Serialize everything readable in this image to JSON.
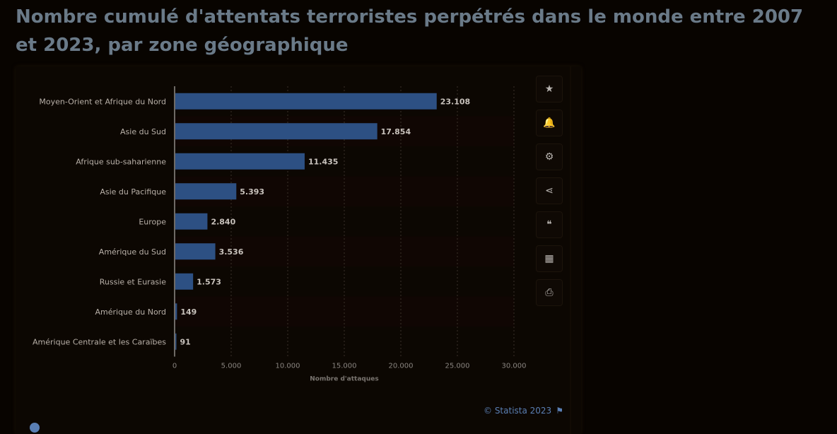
{
  "title": "Nombre cumulé d'attentats terroristes perpétrés dans le monde entre 2007 et 2023, par zone géographique",
  "credit": "© Statista 2023",
  "toolbar": [
    {
      "name": "favorite-icon",
      "glyph": "★"
    },
    {
      "name": "bell-icon",
      "glyph": "🔔"
    },
    {
      "name": "gear-icon",
      "glyph": "⚙"
    },
    {
      "name": "share-icon",
      "glyph": "⋖"
    },
    {
      "name": "quote-icon",
      "glyph": "❝"
    },
    {
      "name": "flag-icon",
      "glyph": "▦"
    },
    {
      "name": "print-icon",
      "glyph": "⎙"
    }
  ],
  "chart_data": {
    "type": "bar",
    "orientation": "horizontal",
    "categories": [
      "Moyen-Orient et Afrique du Nord",
      "Asie du Sud",
      "Afrique sub-saharienne",
      "Asie du Pacifique",
      "Europe",
      "Amérique du Sud",
      "Russie et Eurasie",
      "Amérique du Nord",
      "Amérique Centrale et les Caraïbes"
    ],
    "values": [
      23108,
      17854,
      11435,
      5393,
      2840,
      3536,
      1573,
      149,
      91
    ],
    "value_labels": [
      "23.108",
      "17.854",
      "11.435",
      "5.393",
      "2.840",
      "3.536",
      "1.573",
      "149",
      "91"
    ],
    "xlim": [
      0,
      30000
    ],
    "ticks": [
      0,
      5000,
      10000,
      15000,
      20000,
      25000,
      30000
    ],
    "tick_labels": [
      "0",
      "5.000",
      "10.000",
      "15.000",
      "20.000",
      "25.000",
      "30.000"
    ],
    "xlabel": "Nombre d'attaques",
    "bar_color": "#2d5083",
    "grid": true
  }
}
